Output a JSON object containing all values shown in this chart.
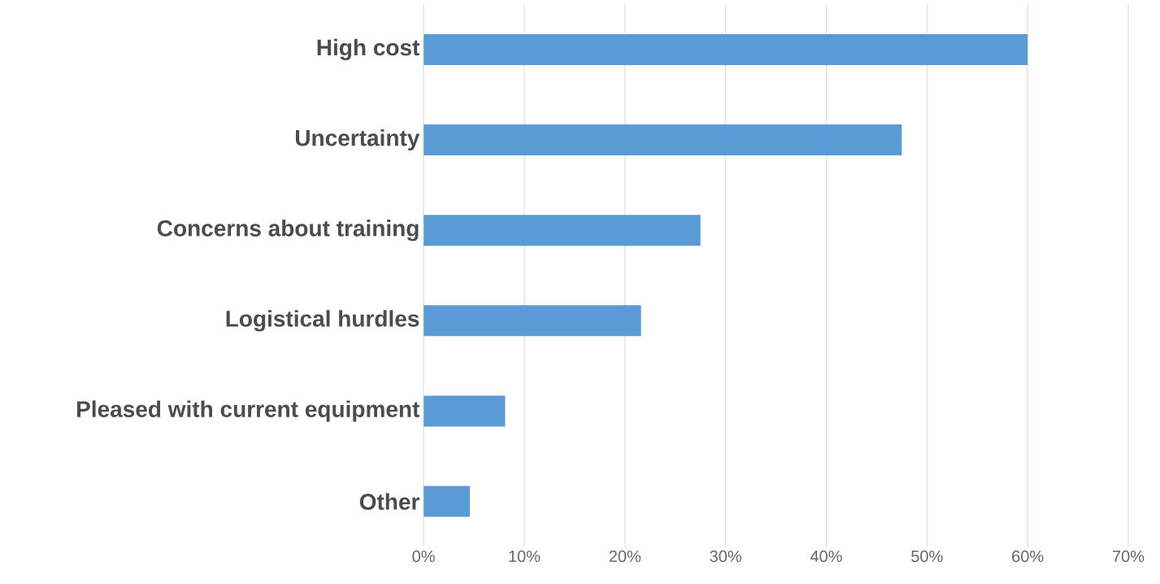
{
  "chart_data": {
    "type": "bar",
    "orientation": "horizontal",
    "categories": [
      "High cost",
      "Uncertainty",
      "Concerns about training",
      "Logistical hurdles",
      "Pleased with current equipment",
      "Other"
    ],
    "values": [
      60,
      47.5,
      27.5,
      21.6,
      8.1,
      4.6
    ],
    "color": "#5b9bd5",
    "xlim": [
      0,
      70
    ],
    "xticks": [
      {
        "value": 0,
        "label": "0%"
      },
      {
        "value": 10,
        "label": "10%"
      },
      {
        "value": 20,
        "label": "20%"
      },
      {
        "value": 30,
        "label": "30%"
      },
      {
        "value": 40,
        "label": "40%"
      },
      {
        "value": 50,
        "label": "50%"
      },
      {
        "value": 60,
        "label": "60%"
      },
      {
        "value": 70,
        "label": "70%"
      }
    ],
    "grid": "x"
  }
}
